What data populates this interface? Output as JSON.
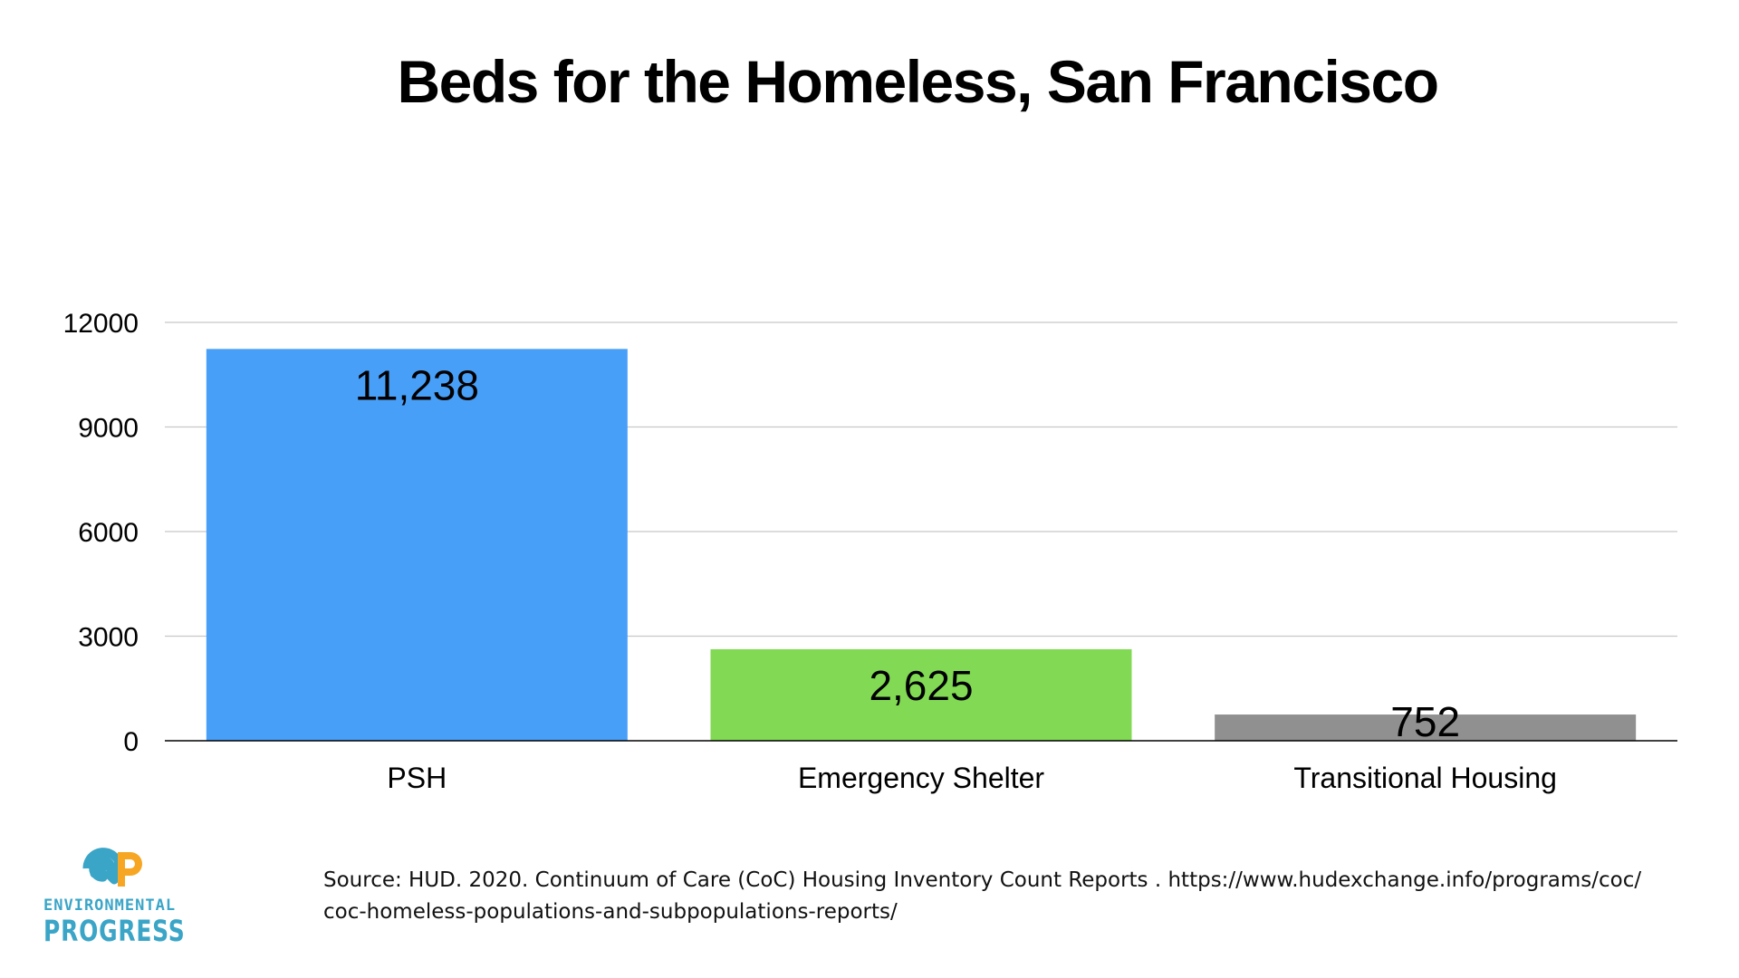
{
  "chart_data": {
    "type": "bar",
    "title": "Beds for the Homeless, San Francisco",
    "categories": [
      "PSH",
      "Emergency Shelter",
      "Transitional Housing"
    ],
    "values": [
      11238,
      2625,
      752
    ],
    "data_labels": [
      "11,238",
      "2,625",
      "752"
    ],
    "colors": [
      "#489ff8",
      "#82d954",
      "#909090"
    ],
    "yticks": [
      0,
      3000,
      6000,
      9000,
      12000
    ],
    "ylim": [
      0,
      12000
    ],
    "xlabel": "",
    "ylabel": "",
    "grid": true,
    "legend": "none"
  },
  "footer": {
    "source_line1": "Source: HUD. 2020. Continuum of Care (CoC) Housing Inventory Count Reports . https://www.hudexchange.info/programs/coc/",
    "source_line2": "coc-homeless-populations-and-subpopulations-reports/"
  },
  "logo": {
    "line1": "ENVIRONMENTAL",
    "line2": "PROGRESS",
    "colors": {
      "orange": "#f6a623",
      "blue": "#3aa5c7"
    }
  }
}
